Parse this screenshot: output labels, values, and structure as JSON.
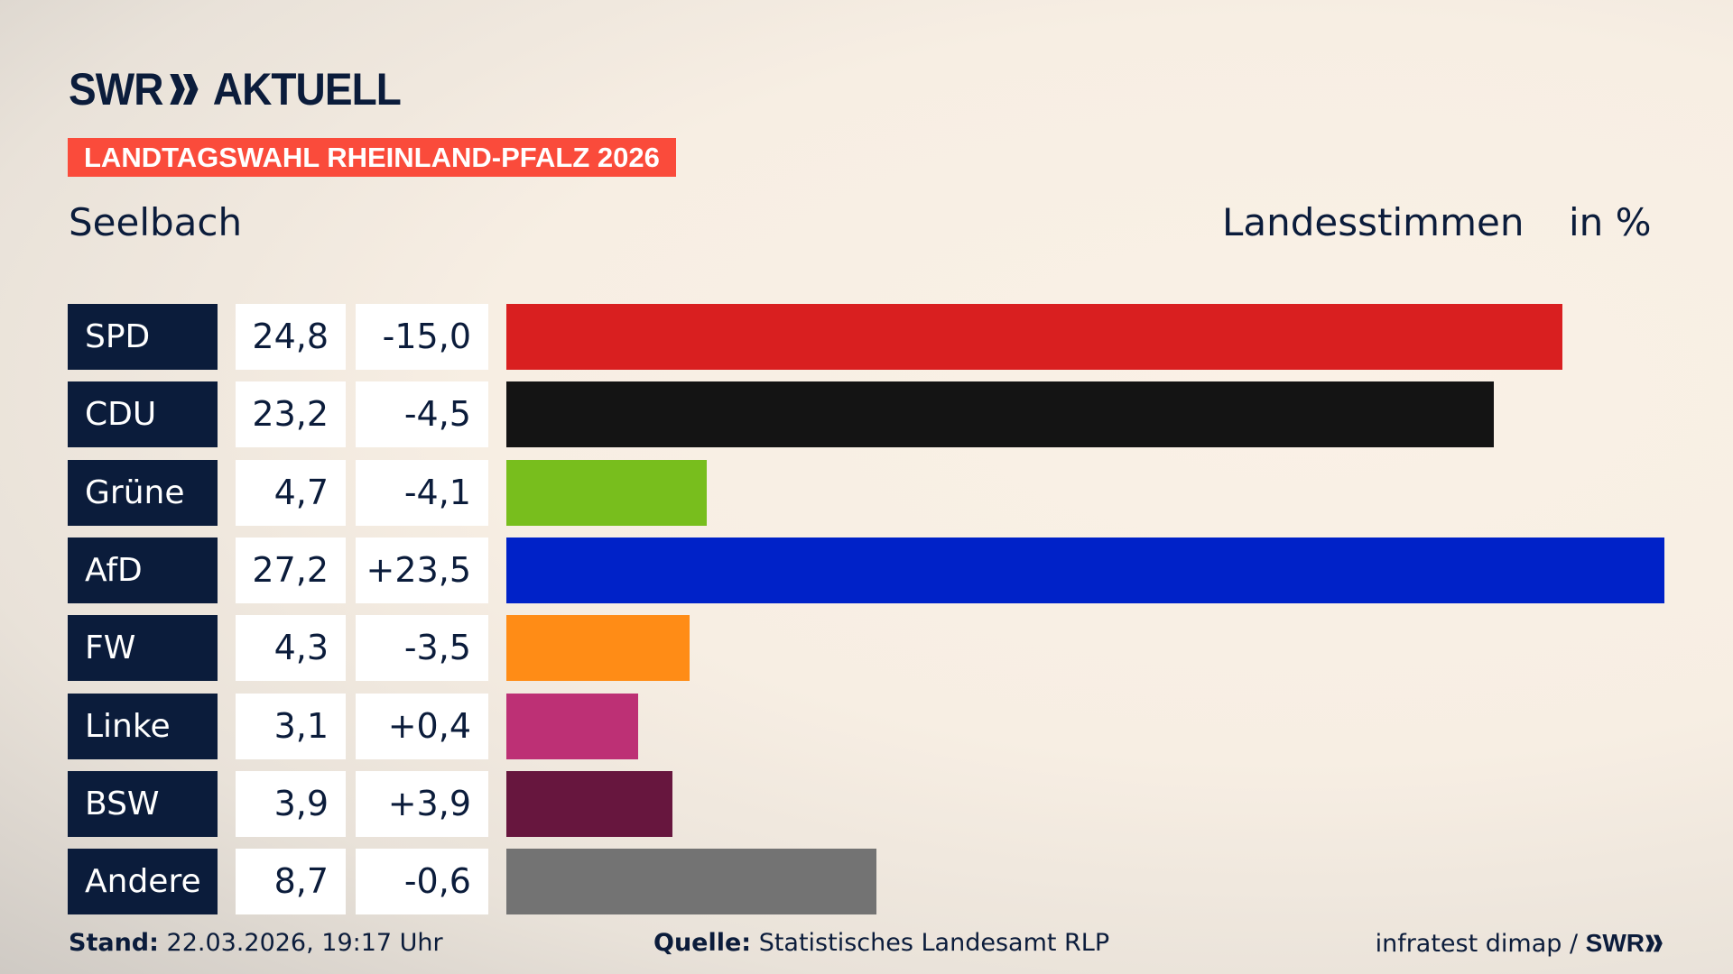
{
  "header": {
    "logo_text": "SWR AKTUELL",
    "banner": "LANDTAGSWAHL RHEINLAND-PFALZ 2026",
    "place": "Seelbach",
    "measure": "Landesstimmen",
    "unit": "in %"
  },
  "chart_data": {
    "type": "bar",
    "orientation": "horizontal",
    "categories": [
      "SPD",
      "CDU",
      "Grüne",
      "AfD",
      "FW",
      "Linke",
      "BSW",
      "Andere"
    ],
    "values": [
      24.8,
      23.2,
      4.7,
      27.2,
      4.3,
      3.1,
      3.9,
      8.7
    ],
    "values_label": [
      "24,8",
      "23,2",
      "4,7",
      "27,2",
      "4,3",
      "3,1",
      "3,9",
      "8,7"
    ],
    "diff": [
      -15.0,
      -4.5,
      -4.1,
      23.5,
      -3.5,
      0.4,
      3.9,
      -0.6
    ],
    "diff_label": [
      "-15,0",
      "-4,5",
      "-4,1",
      "+23,5",
      "-3,5",
      "+0,4",
      "+3,9",
      "-0,6"
    ],
    "colors": [
      "#d91f20",
      "#141414",
      "#78be1d",
      "#0022c8",
      "#ff8c16",
      "#bd3075",
      "#67163e",
      "#737373"
    ],
    "xlim": [
      0,
      27.2
    ],
    "grid": false
  },
  "footer": {
    "stand_label": "Stand:",
    "stand_value": "22.03.2026, 19:17 Uhr",
    "source_label": "Quelle:",
    "source_value": "Statistisches Landesamt RLP",
    "credit": "infratest dimap / ",
    "credit_logo": "SWR"
  }
}
